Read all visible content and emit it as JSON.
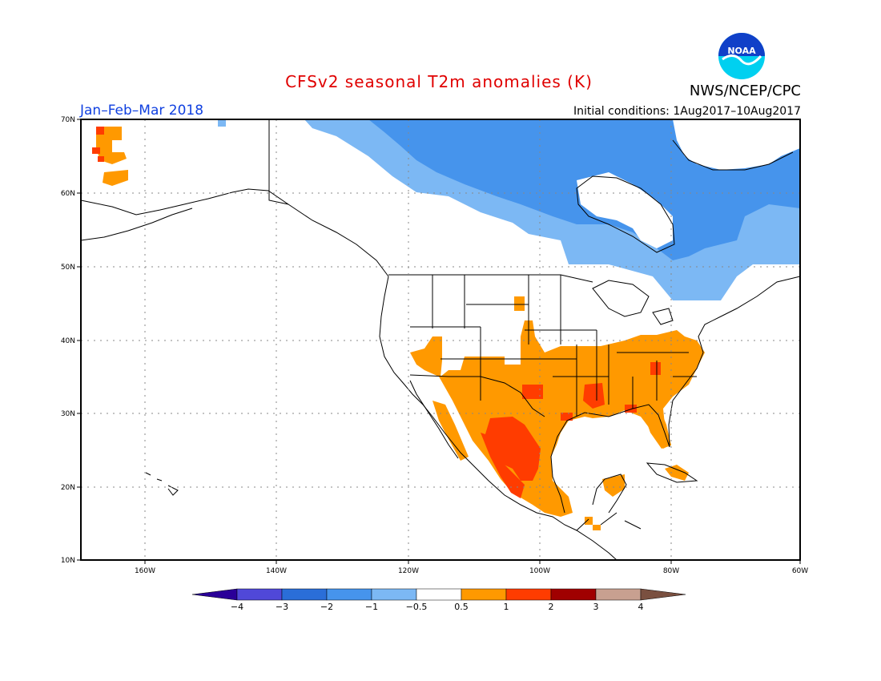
{
  "header": {
    "title": "CFSv2 seasonal T2m anomalies (K)",
    "agency": "NWS/NCEP/CPC",
    "logo_text": "NOAA",
    "period": "Jan–Feb–Mar 2018",
    "initial_conditions": "Initial conditions: 1Aug2017–10Aug2017"
  },
  "map": {
    "lat_labels": [
      "70N",
      "60N",
      "50N",
      "40N",
      "30N",
      "20N",
      "10N"
    ],
    "lon_labels": [
      "160W",
      "140W",
      "120W",
      "100W",
      "80W",
      "60W"
    ]
  },
  "colorbar": {
    "labels": [
      "−4",
      "−3",
      "−2",
      "−1",
      "−0.5",
      "0.5",
      "1",
      "2",
      "3",
      "4"
    ],
    "colors": [
      "#2a0098",
      "#5048d8",
      "#2a6ed8",
      "#4694ec",
      "#7cb8f4",
      "#ffffff",
      "#ff9900",
      "#ff3c00",
      "#a00000",
      "#c8a090",
      "#7a5040"
    ]
  },
  "colors": {
    "cold_strong": "#2a6ed8",
    "cold_weak": "#4694ec",
    "cold_light": "#7cb8f4",
    "warm_weak": "#ff9900",
    "warm_strong": "#ff3c00"
  }
}
